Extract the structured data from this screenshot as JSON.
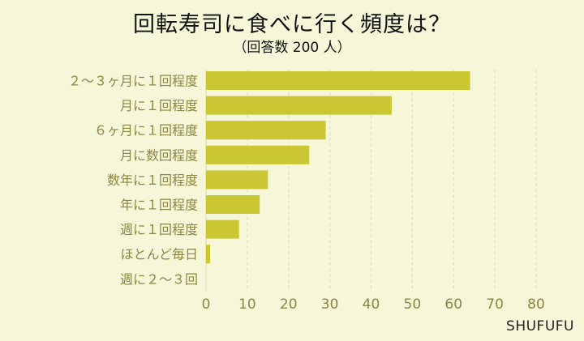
{
  "chart_data": {
    "type": "bar",
    "orientation": "horizontal",
    "title": "回転寿司に食べに行く頻度は？",
    "subtitle": "（回答数 200 人）",
    "categories": [
      "２～３ヶ月に１回程度",
      "月に１回程度",
      "６ヶ月に１回程度",
      "月に数回程度",
      "数年に１回程度",
      "年に１回程度",
      "週に１回程度",
      "ほとんど毎日",
      "週に２～３回"
    ],
    "values": [
      64,
      45,
      29,
      25,
      15,
      13,
      8,
      1,
      0
    ],
    "xlim": [
      0,
      80
    ],
    "xticks": [
      "0",
      "10",
      "20",
      "30",
      "40",
      "50",
      "60",
      "70",
      "80"
    ],
    "grid": "vertical dashed",
    "colors": {
      "bar": "#cbc633",
      "grid": "#e2e0c4",
      "text": "#8a8740",
      "background": "#f6f6d8"
    }
  },
  "brand": "SHUFUFU"
}
